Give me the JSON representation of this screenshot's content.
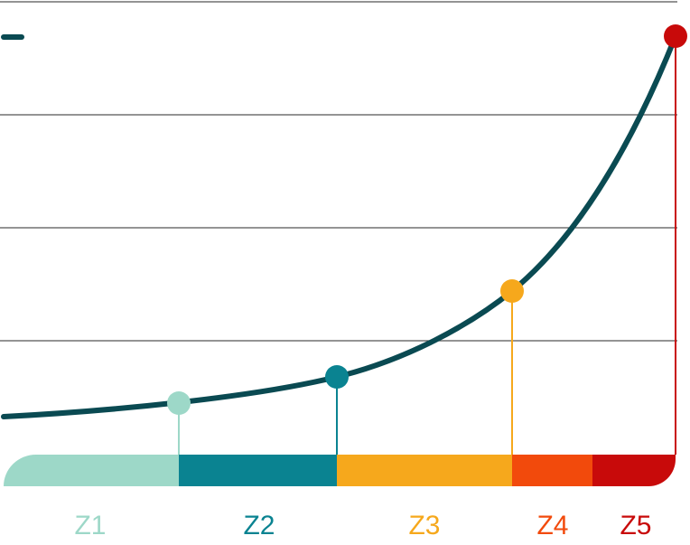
{
  "zones": [
    {
      "label": "Z1"
    },
    {
      "label": "Z2"
    },
    {
      "label": "Z3"
    },
    {
      "label": "Z4"
    },
    {
      "label": "Z5"
    }
  ]
}
